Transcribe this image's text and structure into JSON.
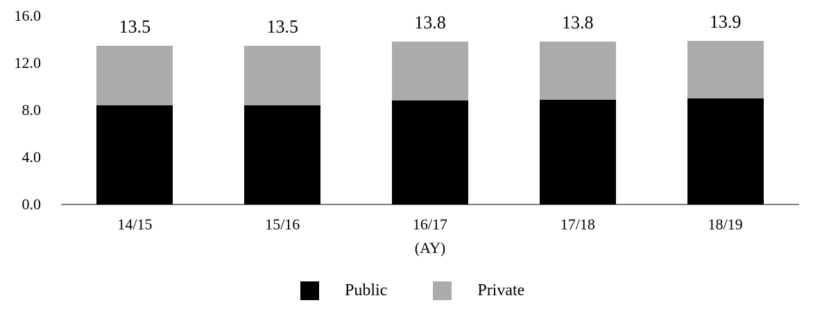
{
  "chart_data": {
    "type": "bar",
    "stacked": true,
    "title": "",
    "categories": [
      "14/15",
      "15/16",
      "16/17",
      "17/18",
      "18/19"
    ],
    "series": [
      {
        "name": "Public",
        "color": "#000000",
        "values": [
          8.4,
          8.4,
          8.8,
          8.9,
          9.0
        ]
      },
      {
        "name": "Private",
        "color": "#ababab",
        "values": [
          5.1,
          5.1,
          5.0,
          4.9,
          4.9
        ]
      }
    ],
    "total_labels": [
      "13.5",
      "13.5",
      "13.8",
      "13.8",
      "13.9"
    ],
    "xlabel": "(AY)",
    "ylabel": "",
    "yticks": [
      {
        "label": "0.0",
        "value": 0
      },
      {
        "label": "4.0",
        "value": 4
      },
      {
        "label": "8.0",
        "value": 8
      },
      {
        "label": "12.0",
        "value": 12
      },
      {
        "label": "16.0",
        "value": 16
      }
    ],
    "ylim": [
      0,
      16
    ],
    "grid": false,
    "legend_position": "bottom-center",
    "axis_line_color": "#7f7f7f",
    "text_color": "#000000",
    "background": "#ffffff"
  }
}
